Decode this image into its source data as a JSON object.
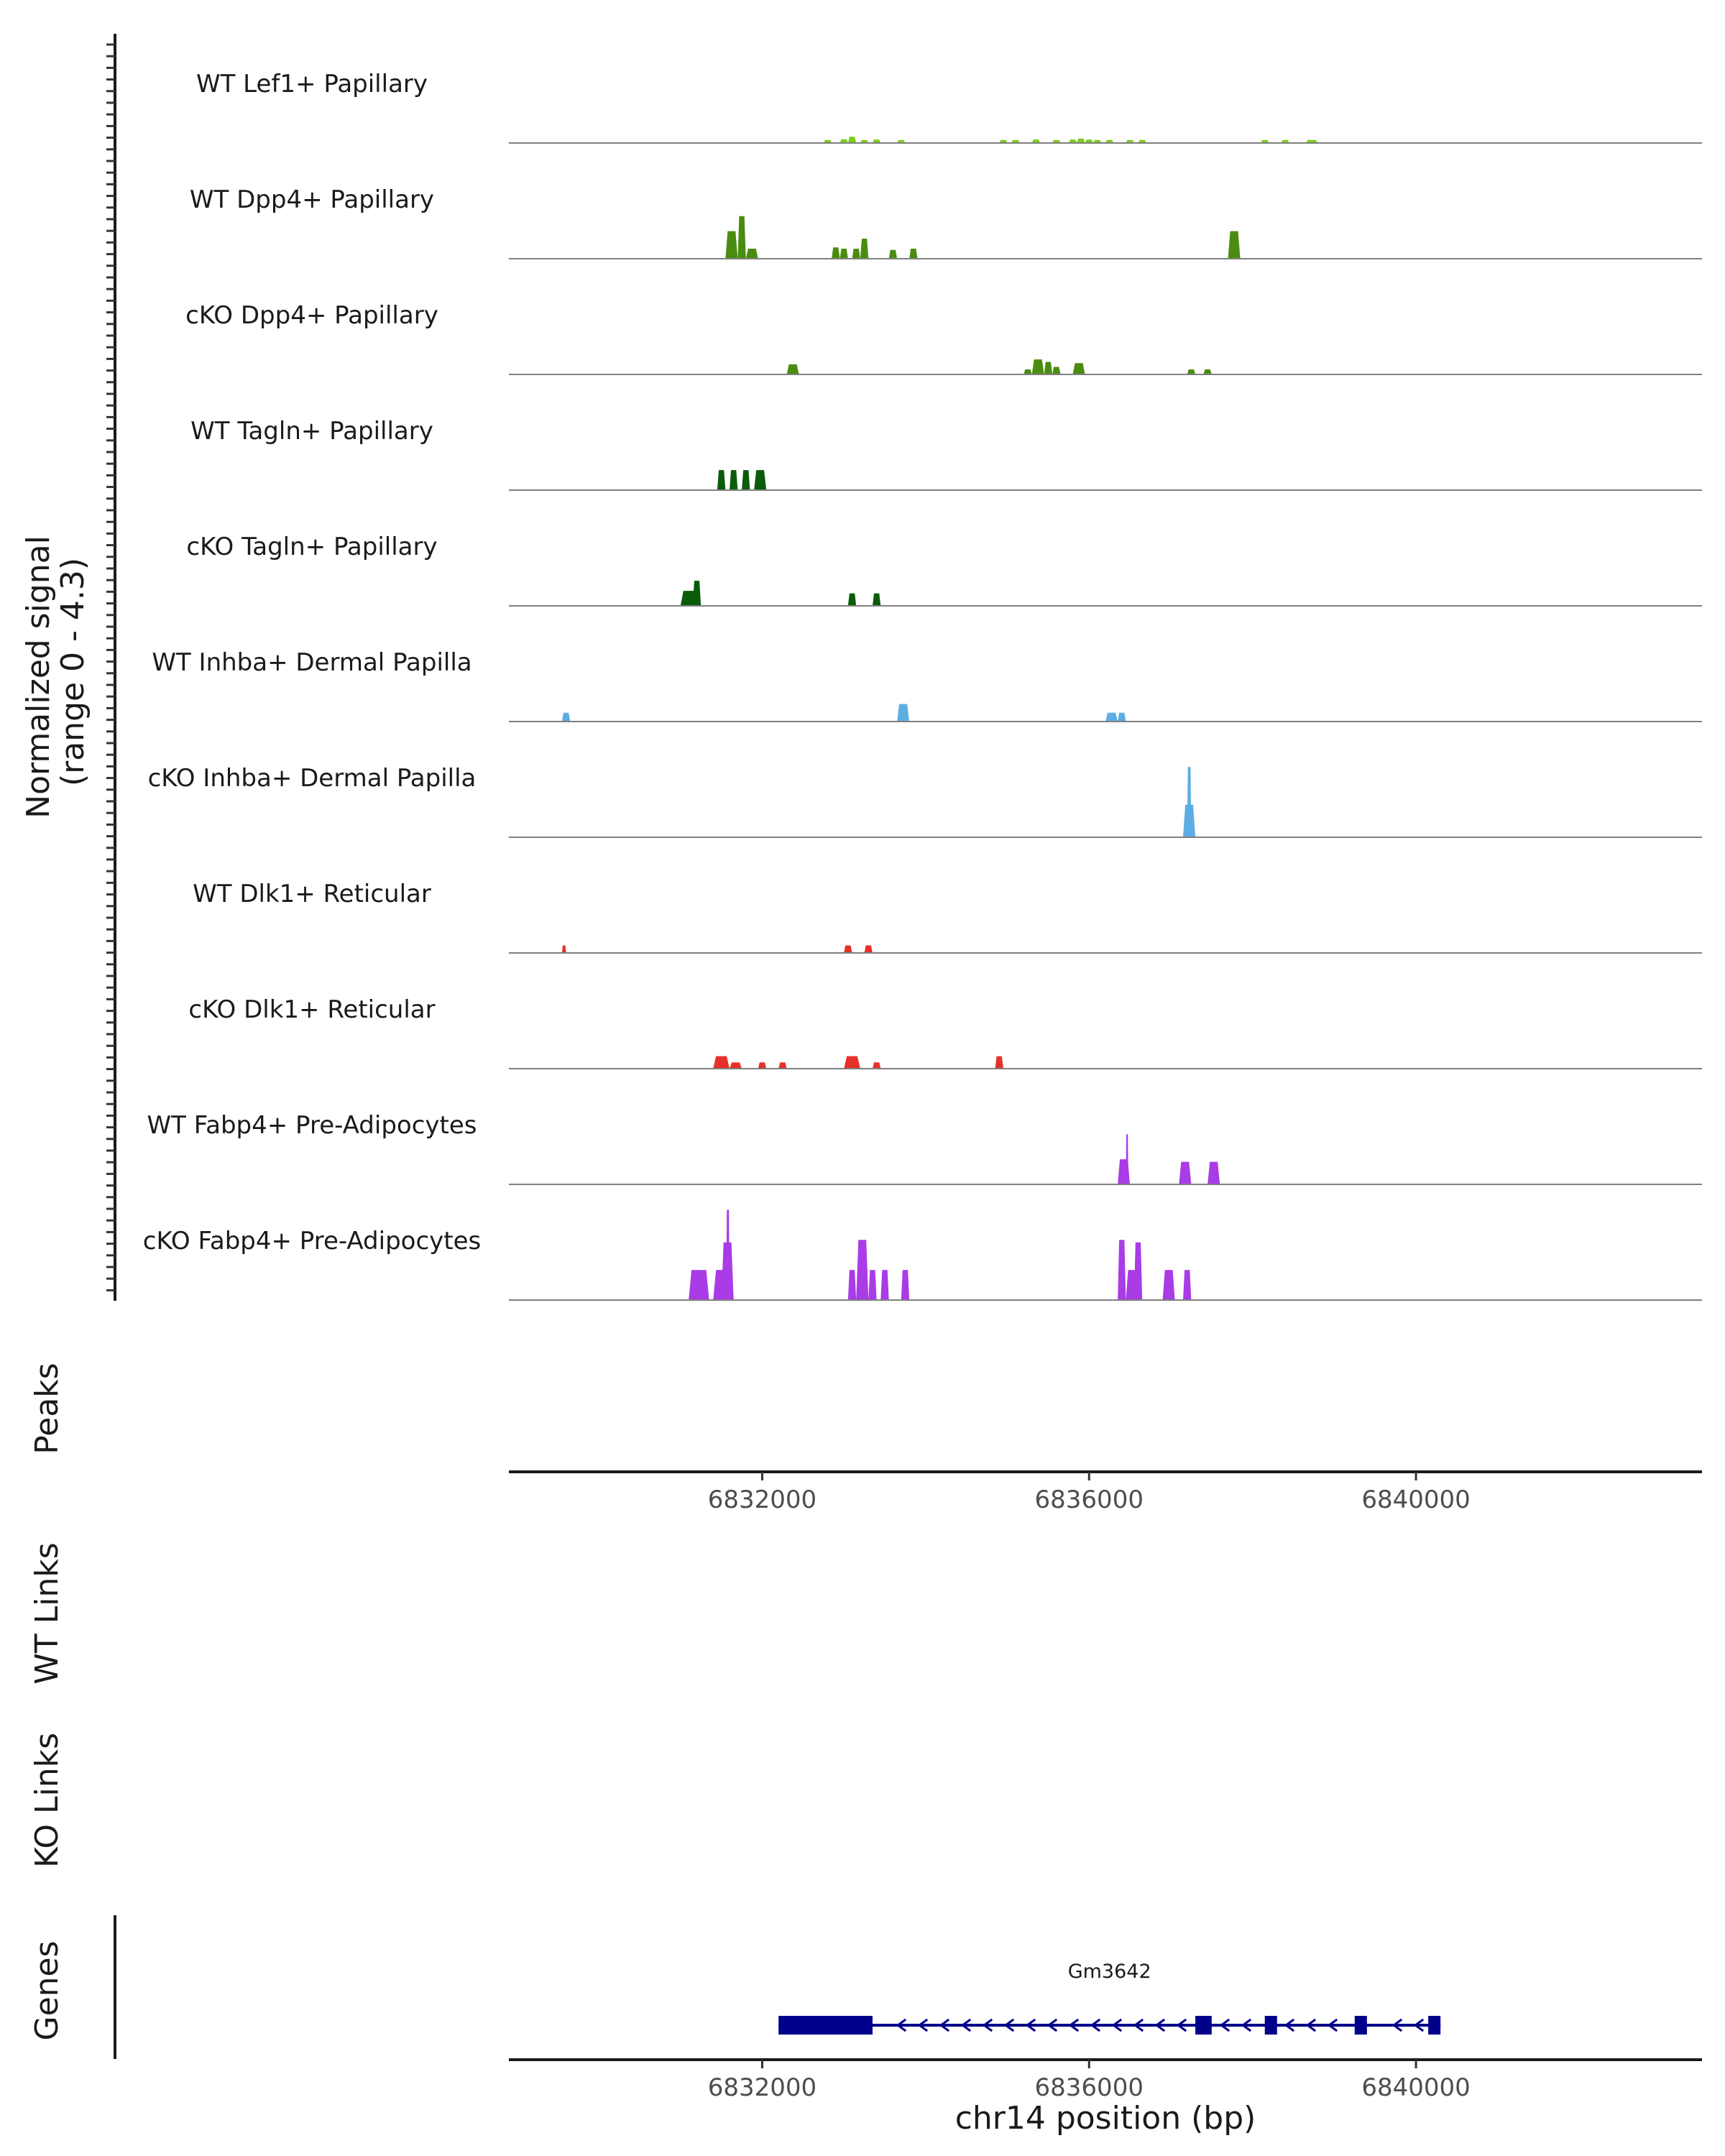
{
  "chart_data": {
    "type": "area",
    "coverage_ylabel_line1": "Normalized signal",
    "coverage_ylabel_line2": "(range 0 - 4.3)",
    "ylim": [
      0,
      4.3
    ],
    "xlim": [
      6828900,
      6843500
    ],
    "x_ticks": [
      6832000,
      6836000,
      6840000
    ],
    "xlabel": "chr14 position (bp)",
    "tracks": [
      {
        "name": "WT Lef1+ Papillary",
        "color": "#7ccd1c",
        "peaks": [
          [
            6832750,
            6832850,
            0.12
          ],
          [
            6832950,
            6833050,
            0.15
          ],
          [
            6833050,
            6833150,
            0.25
          ],
          [
            6833200,
            6833300,
            0.12
          ],
          [
            6833350,
            6833450,
            0.14
          ],
          [
            6833650,
            6833750,
            0.12
          ],
          [
            6834900,
            6835000,
            0.12
          ],
          [
            6835050,
            6835150,
            0.12
          ],
          [
            6835300,
            6835400,
            0.14
          ],
          [
            6835550,
            6835650,
            0.12
          ],
          [
            6835750,
            6835850,
            0.14
          ],
          [
            6835850,
            6835950,
            0.18
          ],
          [
            6835950,
            6836050,
            0.14
          ],
          [
            6836050,
            6836150,
            0.12
          ],
          [
            6836200,
            6836300,
            0.12
          ],
          [
            6836450,
            6836550,
            0.12
          ],
          [
            6836600,
            6836700,
            0.12
          ],
          [
            6838100,
            6838200,
            0.12
          ],
          [
            6838350,
            6838450,
            0.12
          ],
          [
            6838650,
            6838800,
            0.12
          ]
        ]
      },
      {
        "name": "WT Dpp4+ Papillary",
        "color": "#4a8c10",
        "peaks": [
          [
            6831550,
            6831700,
            1.1
          ],
          [
            6831700,
            6831800,
            1.7
          ],
          [
            6831800,
            6831950,
            0.4
          ],
          [
            6832850,
            6832950,
            0.45
          ],
          [
            6832950,
            6833050,
            0.4
          ],
          [
            6833100,
            6833200,
            0.4
          ],
          [
            6833200,
            6833300,
            0.8
          ],
          [
            6833550,
            6833650,
            0.35
          ],
          [
            6833800,
            6833900,
            0.4
          ],
          [
            6837700,
            6837850,
            1.1
          ]
        ]
      },
      {
        "name": "cKO Dpp4+ Papillary",
        "color": "#4a8c10",
        "peaks": [
          [
            6832300,
            6832450,
            0.4
          ],
          [
            6835200,
            6835300,
            0.2
          ],
          [
            6835300,
            6835450,
            0.6
          ],
          [
            6835450,
            6835550,
            0.5
          ],
          [
            6835550,
            6835650,
            0.3
          ],
          [
            6835800,
            6835950,
            0.45
          ],
          [
            6837200,
            6837300,
            0.2
          ],
          [
            6837400,
            6837500,
            0.2
          ]
        ]
      },
      {
        "name": "WT Tagln+ Papillary",
        "color": "#0a5c0a",
        "peaks": [
          [
            6831450,
            6831550,
            0.8
          ],
          [
            6831600,
            6831700,
            0.8
          ],
          [
            6831750,
            6831850,
            0.8
          ],
          [
            6831900,
            6832050,
            0.8
          ]
        ]
      },
      {
        "name": "cKO Tagln+ Papillary",
        "color": "#0a5c0a",
        "peaks": [
          [
            6831000,
            6831200,
            0.6
          ],
          [
            6831150,
            6831250,
            1.0
          ],
          [
            6833050,
            6833150,
            0.5
          ],
          [
            6833350,
            6833450,
            0.5
          ]
        ]
      },
      {
        "name": "WT Inhba+ Dermal Papilla",
        "color": "#5dade2",
        "peaks": [
          [
            6829550,
            6829650,
            0.35
          ],
          [
            6833650,
            6833800,
            0.7
          ],
          [
            6836200,
            6836350,
            0.35
          ],
          [
            6836350,
            6836450,
            0.35
          ]
        ]
      },
      {
        "name": "cKO Inhba+ Dermal Papilla",
        "color": "#5dade2",
        "peaks": [
          [
            6837150,
            6837300,
            1.3
          ],
          [
            6837200,
            6837250,
            2.8
          ]
        ]
      },
      {
        "name": "WT Dlk1+ Reticular",
        "color": "#e8302a",
        "peaks": [
          [
            6829550,
            6829600,
            0.3
          ],
          [
            6833000,
            6833100,
            0.3
          ],
          [
            6833250,
            6833350,
            0.3
          ]
        ]
      },
      {
        "name": "cKO Dlk1+ Reticular",
        "color": "#e8302a",
        "peaks": [
          [
            6831400,
            6831600,
            0.5
          ],
          [
            6831600,
            6831750,
            0.25
          ],
          [
            6831950,
            6832050,
            0.25
          ],
          [
            6832200,
            6832300,
            0.25
          ],
          [
            6833000,
            6833200,
            0.5
          ],
          [
            6833350,
            6833450,
            0.25
          ],
          [
            6834850,
            6834950,
            0.5
          ]
        ]
      },
      {
        "name": "WT Fabp4+ Pre-Adipocytes",
        "color": "#a93ce6",
        "peaks": [
          [
            6836350,
            6836500,
            1.0
          ],
          [
            6836450,
            6836480,
            2.0
          ],
          [
            6837100,
            6837250,
            0.9
          ],
          [
            6837450,
            6837600,
            0.9
          ]
        ]
      },
      {
        "name": "cKO Fabp4+ Pre-Adipocytes",
        "color": "#a93ce6",
        "peaks": [
          [
            6831100,
            6831350,
            1.2
          ],
          [
            6831400,
            6831600,
            1.2
          ],
          [
            6831500,
            6831650,
            2.3
          ],
          [
            6831560,
            6831600,
            3.6
          ],
          [
            6833050,
            6833150,
            1.2
          ],
          [
            6833150,
            6833300,
            2.4
          ],
          [
            6833300,
            6833400,
            1.2
          ],
          [
            6833450,
            6833550,
            1.2
          ],
          [
            6833700,
            6833800,
            1.2
          ],
          [
            6836350,
            6836450,
            2.4
          ],
          [
            6836450,
            6836600,
            1.2
          ],
          [
            6836550,
            6836650,
            2.3
          ],
          [
            6836900,
            6837050,
            1.2
          ],
          [
            6837150,
            6837250,
            1.2
          ]
        ]
      }
    ],
    "panel_labels": {
      "peaks": "Peaks",
      "wt_links": "WT Links",
      "ko_links": "KO Links",
      "genes": "Genes"
    },
    "gene": {
      "name": "Gm3642",
      "start": 6832200,
      "end": 6840300,
      "strand": "-",
      "color": "#00008b",
      "exons": [
        [
          6832200,
          6833350
        ],
        [
          6837300,
          6837500
        ],
        [
          6838150,
          6838300
        ],
        [
          6839250,
          6839400
        ],
        [
          6840150,
          6840300
        ]
      ]
    }
  }
}
